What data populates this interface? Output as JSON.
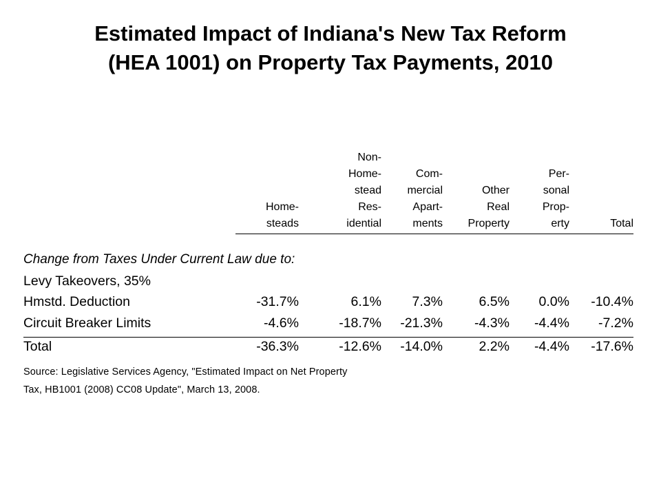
{
  "title": {
    "line1": "Estimated Impact of Indiana's New Tax Reform",
    "line2": "(HEA 1001) on Property Tax Payments, 2010"
  },
  "columns": [
    {
      "lines": [
        "Home-",
        "steads"
      ]
    },
    {
      "lines": [
        "Non-",
        "Home-",
        "stead",
        "Res-",
        "idential"
      ]
    },
    {
      "lines": [
        "Com-",
        "mercial",
        "Apart-",
        "ments"
      ]
    },
    {
      "lines": [
        "Other",
        "Real",
        "Property"
      ]
    },
    {
      "lines": [
        "Per-",
        "sonal",
        "Prop-",
        "erty"
      ]
    },
    {
      "lines": [
        "Total"
      ]
    }
  ],
  "section_label": "Change from Taxes Under Current Law due to:",
  "rows": [
    {
      "label": "Levy Takeovers, 35%",
      "values": [
        "",
        "",
        "",
        "",
        "",
        ""
      ]
    },
    {
      "label": "Hmstd. Deduction",
      "values": [
        "-31.7%",
        "6.1%",
        "7.3%",
        "6.5%",
        "0.0%",
        "-10.4%"
      ]
    },
    {
      "label": "Circuit Breaker Limits",
      "values": [
        "-4.6%",
        "-18.7%",
        "-21.3%",
        "-4.3%",
        "-4.4%",
        "-7.2%"
      ]
    },
    {
      "label": "Total",
      "values": [
        "-36.3%",
        "-12.6%",
        "-14.0%",
        "2.2%",
        "-4.4%",
        "-17.6%"
      ]
    }
  ],
  "source": {
    "line1": "Source:  Legislative Services Agency, \"Estimated Impact on Net Property",
    "line2": "Tax, HB1001 (2008) CC08 Update\", March 13, 2008."
  }
}
